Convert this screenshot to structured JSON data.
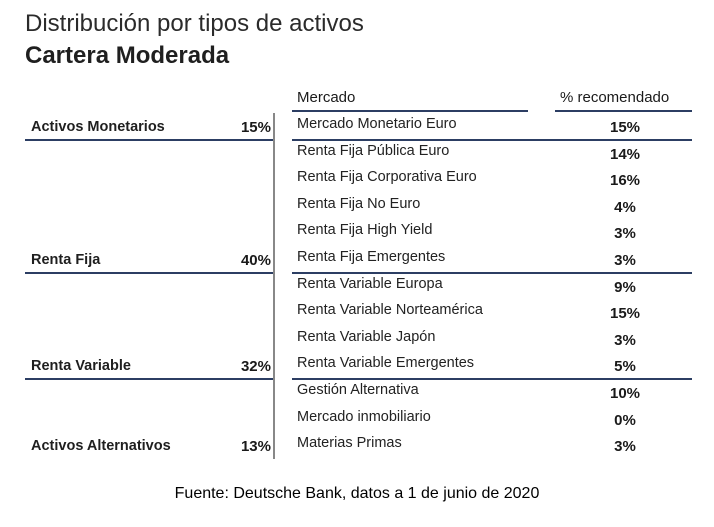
{
  "chart_data": {
    "type": "table",
    "title": "Distribución por tipos de activos",
    "subtitle": "Cartera Moderada",
    "columns": [
      "Mercado",
      "% recomendado"
    ],
    "categories": [
      {
        "label": "Activos Monetarios",
        "value": "15%",
        "rows": [
          {
            "market": "Mercado Monetario Euro",
            "pct": "15%"
          }
        ]
      },
      {
        "label": "Renta Fija",
        "value": "40%",
        "rows": [
          {
            "market": "Renta Fija Pública Euro",
            "pct": "14%"
          },
          {
            "market": "Renta Fija Corporativa Euro",
            "pct": "16%"
          },
          {
            "market": "Renta Fija No Euro",
            "pct": "4%"
          },
          {
            "market": "Renta Fija High Yield",
            "pct": "3%"
          },
          {
            "market": "Renta Fija Emergentes",
            "pct": "3%"
          }
        ]
      },
      {
        "label": "Renta Variable",
        "value": "32%",
        "rows": [
          {
            "market": "Renta Variable Europa",
            "pct": "9%"
          },
          {
            "market": "Renta Variable Norteamérica",
            "pct": "15%"
          },
          {
            "market": "Renta Variable Japón",
            "pct": "3%"
          },
          {
            "market": "Renta Variable Emergentes",
            "pct": "5%"
          }
        ]
      },
      {
        "label": "Activos Alternativos",
        "value": "13%",
        "rows": [
          {
            "market": "Gestión Alternativa",
            "pct": "10%"
          },
          {
            "market": "Mercado inmobiliario",
            "pct": "0%"
          },
          {
            "market": "Materias Primas",
            "pct": "3%"
          }
        ]
      }
    ],
    "source": "Fuente: Deutsche Bank, datos a 1 de junio de 2020"
  },
  "colors": {
    "rule": "#2c3e63"
  }
}
